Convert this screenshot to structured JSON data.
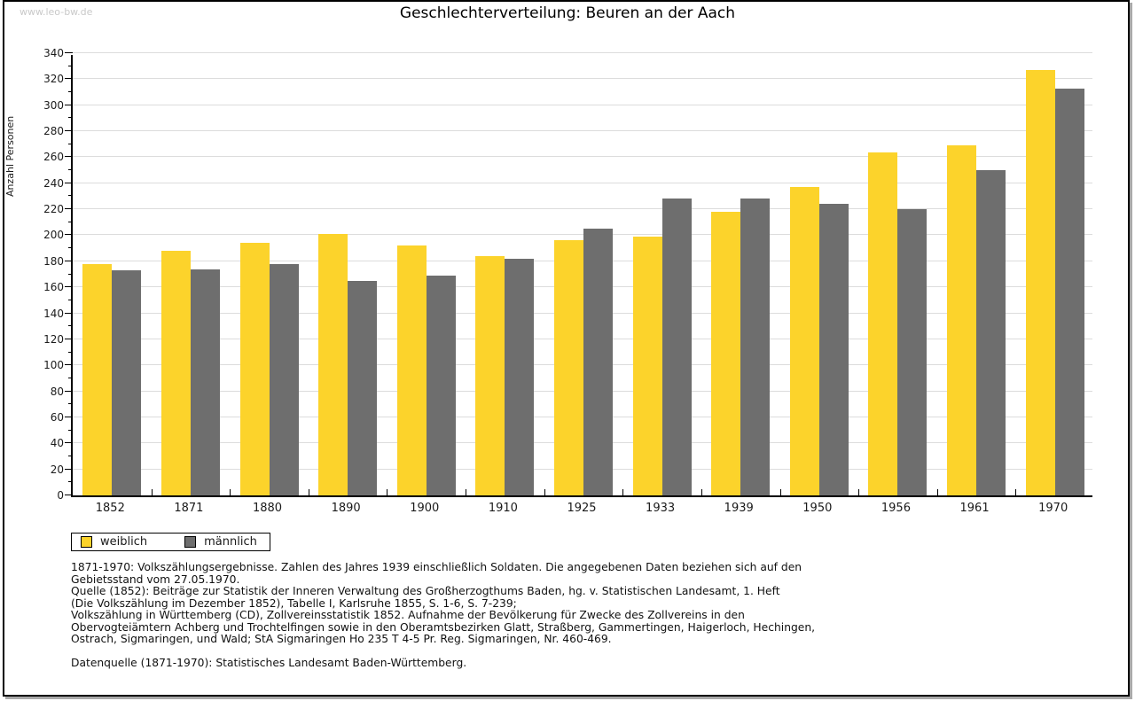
{
  "watermark": "www.leo-bw.de",
  "header": {
    "title": "Geschlechterverteilung: Beuren an der Aach"
  },
  "chart_data": {
    "type": "bar",
    "title": "Geschlechterverteilung: Beuren an der Aach",
    "xlabel": "",
    "ylabel": "Anzahl Personen",
    "ylim": [
      0,
      340
    ],
    "ytick_step": 20,
    "ytick_minor_step": 10,
    "grid": true,
    "legend_position": "bottom-left",
    "categories": [
      "1852",
      "1871",
      "1880",
      "1890",
      "1900",
      "1910",
      "1925",
      "1933",
      "1939",
      "1950",
      "1956",
      "1961",
      "1970"
    ],
    "series": [
      {
        "name": "weiblich",
        "color": "#FCD32B",
        "values": [
          178,
          188,
          194,
          201,
          192,
          184,
          196,
          199,
          218,
          237,
          264,
          269,
          327
        ]
      },
      {
        "name": "männlich",
        "color": "#6E6E6E",
        "values": [
          173,
          174,
          178,
          165,
          169,
          182,
          205,
          228,
          228,
          224,
          220,
          250,
          313
        ]
      }
    ],
    "colors": {
      "gridline": "#dcdcdc",
      "axis": "#000000"
    }
  },
  "notes": [
    "1871-1970: Volkszählungsergebnisse. Zahlen des Jahres 1939 einschließlich Soldaten. Die angegebenen Daten beziehen sich auf den",
    "Gebietsstand vom 27.05.1970.",
    "Quelle (1852): Beiträge zur Statistik der Inneren Verwaltung des Großherzogthums Baden, hg. v. Statistischen Landesamt, 1. Heft",
    "(Die Volkszählung im Dezember 1852), Tabelle I, Karlsruhe 1855, S. 1-6, S. 7-239;",
    "Volkszählung in Württemberg (CD), Zollvereinsstatistik 1852. Aufnahme der Bevölkerung für Zwecke des Zollvereins in den",
    "Obervogteiämtern Achberg und Trochtelfingen sowie in den Oberamtsbezirken Glatt, Straßberg, Gammertingen, Haigerloch, Hechingen,",
    "Ostrach, Sigmaringen, und Wald; StA Sigmaringen Ho 235 T 4-5 Pr. Reg. Sigmaringen, Nr. 460-469."
  ],
  "datasource": "Datenquelle (1871-1970): Statistisches Landesamt Baden-Württemberg."
}
